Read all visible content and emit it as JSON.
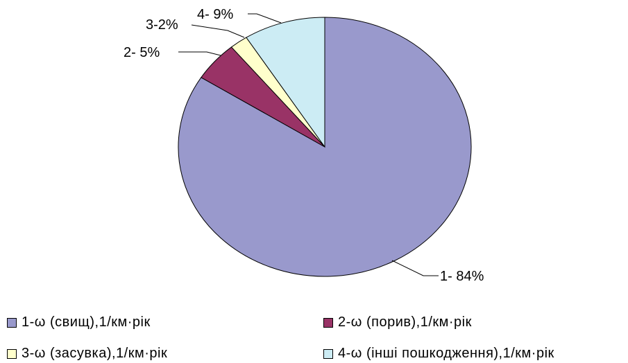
{
  "chart_data": {
    "type": "pie",
    "slices": [
      {
        "label": "1- 84%",
        "legend": "1-ω (свищ),1/км·рік",
        "value": 84,
        "color": "#9999cc"
      },
      {
        "label": "2- 5%",
        "legend": "2-ω (порив),1/км·рік",
        "value": 5,
        "color": "#993366"
      },
      {
        "label": "3-2%",
        "legend": "3-ω (засувка),1/км·рік",
        "value": 2,
        "color": "#ffffcc"
      },
      {
        "label": "4- 9%",
        "legend": "4-ω (інші пошкодження),1/км·рік",
        "value": 9,
        "color": "#ccecf4"
      }
    ],
    "start_angle": "12 o'clock",
    "direction": "clockwise",
    "legend_position": "bottom"
  }
}
